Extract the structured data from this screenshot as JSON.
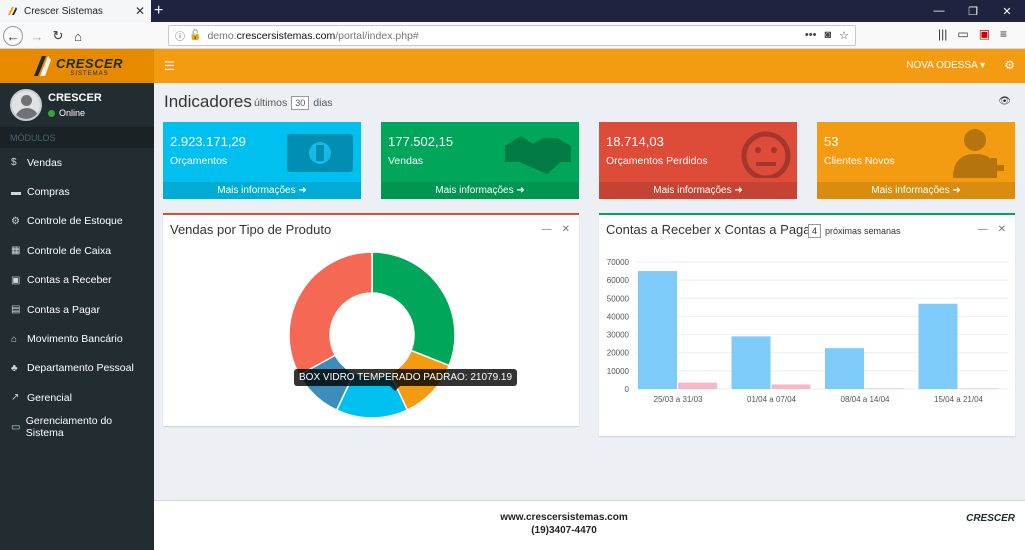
{
  "browser": {
    "tab_title": "Crescer Sistemas",
    "url_prefix": "demo.",
    "url_host": "crescersistemas.com",
    "url_path": "/portal/index.php#"
  },
  "sidebar": {
    "logo": "CRESCER",
    "logo_sub": "SISTEMAS",
    "user_name": "CRESCER",
    "user_status": "Online",
    "section": "MÓDULOS",
    "items": [
      {
        "label": "Vendas",
        "icon": "$"
      },
      {
        "label": "Compras",
        "icon": "▬"
      },
      {
        "label": "Controle de Estoque",
        "icon": "⚙"
      },
      {
        "label": "Controle de Caixa",
        "icon": "▦"
      },
      {
        "label": "Contas a Receber",
        "icon": "▣"
      },
      {
        "label": "Contas a Pagar",
        "icon": "▤"
      },
      {
        "label": "Movimento Bancário",
        "icon": "⌂"
      },
      {
        "label": "Departamento Pessoal",
        "icon": "♣"
      },
      {
        "label": "Gerencial",
        "icon": "↗"
      },
      {
        "label": "Gerenciamento do Sistema",
        "icon": "▭"
      }
    ]
  },
  "topbar": {
    "city": "NOVA ODESSA ▾"
  },
  "header": {
    "title": "Indicadores",
    "period_prefix": "últimos",
    "period_value": "30",
    "period_suffix": "dias"
  },
  "boxes": [
    {
      "value": "2.923.171,29",
      "label": "Orçamentos",
      "footer": "Mais informações ➜",
      "color": "#00c0ef"
    },
    {
      "value": "177.502,15",
      "label": "Vendas",
      "footer": "Mais informações ➜",
      "color": "#00a65a"
    },
    {
      "value": "18.714,03",
      "label": "Orçamentos Perdidos",
      "footer": "Mais informações ➜",
      "color": "#dd4b39"
    },
    {
      "value": "53",
      "label": "Clientes Novos",
      "footer": "Mais informações ➜",
      "color": "#f39c12"
    }
  ],
  "donut_panel": {
    "title": "Vendas por Tipo de Produto",
    "tooltip": "BOX VIDRO TEMPERADO PADRAO: 21079.19"
  },
  "bar_panel": {
    "title": "Contas a Receber x Contas a Pagar",
    "weeks_value": "4",
    "weeks_label": "próximas semanas"
  },
  "chart_data": [
    {
      "type": "pie",
      "title": "Vendas por Tipo de Produto",
      "slices": [
        {
          "label": "",
          "value": 31,
          "color": "#00a65a"
        },
        {
          "label": "",
          "value": 12,
          "color": "#f39c12"
        },
        {
          "label": "BOX VIDRO TEMPERADO PADRAO",
          "value": 21079.19,
          "display_share": 14,
          "color": "#00c0ef"
        },
        {
          "label": "",
          "value": 10,
          "color": "#3c8dbc"
        },
        {
          "label": "",
          "value": 33,
          "color": "#f56954"
        }
      ]
    },
    {
      "type": "bar",
      "title": "Contas a Receber x Contas a Pagar",
      "categories": [
        "25/03 a 31/03",
        "01/04 a 07/04",
        "08/04 a 14/04",
        "15/04 a 21/04"
      ],
      "series": [
        {
          "values": [
            65000,
            29000,
            22500,
            47000
          ],
          "color": "#7ecbfa"
        },
        {
          "values": [
            3500,
            2500,
            400,
            400
          ],
          "color": "#f9b8c6"
        }
      ],
      "ylim": [
        0,
        70000
      ],
      "yticks": [
        0,
        10000,
        20000,
        30000,
        40000,
        50000,
        60000,
        70000
      ]
    }
  ],
  "footer": {
    "site": "www.crescersistemas.com",
    "phone": "(19)3407-4470",
    "logo": "CRESCER"
  }
}
